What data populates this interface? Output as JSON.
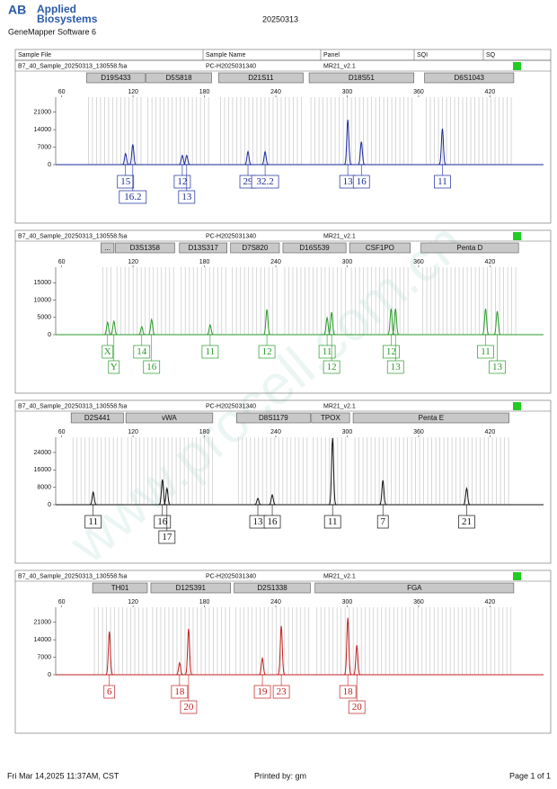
{
  "header": {
    "logo_mark": "AB",
    "brand_line1": "Applied",
    "brand_line2": "Biosystems",
    "software": "GeneMapper Software 6",
    "date": "20250313"
  },
  "columns": [
    "Sample File",
    "Sample Name",
    "Panel",
    "SQI",
    "SQ"
  ],
  "chart_data": [
    {
      "type": "electropherogram",
      "sample_file": "B7_40_Sample_20250313_130558.fsa",
      "sample_name": "PC-H2025031340",
      "panel": "MR21_v2.1",
      "sq_color": "#22cc22",
      "color": "#1a2a9a",
      "xlim": [
        55,
        465
      ],
      "xticks": [
        60,
        120,
        180,
        240,
        300,
        360,
        420
      ],
      "ylim": [
        0,
        27000
      ],
      "yticks": [
        0,
        7000,
        14000,
        21000
      ],
      "markers": [
        {
          "name": "D19S433",
          "start": 81,
          "end": 130
        },
        {
          "name": "D5S818",
          "start": 131,
          "end": 186
        },
        {
          "name": "D21S11",
          "start": 192,
          "end": 263
        },
        {
          "name": "D18S51",
          "start": 268,
          "end": 356
        },
        {
          "name": "D6S1043",
          "start": 365,
          "end": 440
        }
      ],
      "x": [
        113.7,
        119.8,
        161.4,
        165.1,
        216.6,
        231,
        300.5,
        311.9,
        380
      ],
      "values": [
        4400,
        8100,
        3700,
        3700,
        5200,
        5200,
        18000,
        9200,
        14400
      ],
      "labels": [
        "15",
        "16.2",
        "12",
        "13",
        "29",
        "32.2",
        "13",
        "16",
        "11"
      ]
    },
    {
      "type": "electropherogram",
      "sample_file": "B7_40_Sample_20250313_130558.fsa",
      "sample_name": "PC-H2025031340",
      "panel": "MR21_v2.1",
      "sq_color": "#22cc22",
      "color": "#2a9a2a",
      "xlim": [
        55,
        465
      ],
      "xticks": [
        60,
        120,
        180,
        240,
        300,
        360,
        420
      ],
      "ylim": [
        0,
        19500
      ],
      "yticks": [
        0,
        5000,
        10000,
        15000
      ],
      "markers": [
        {
          "name": "...",
          "start": 93,
          "end": 104
        },
        {
          "name": "D3S1358",
          "start": 105,
          "end": 155
        },
        {
          "name": "D13S317",
          "start": 159,
          "end": 199
        },
        {
          "name": "D7S820",
          "start": 202,
          "end": 243
        },
        {
          "name": "D16S539",
          "start": 246,
          "end": 299
        },
        {
          "name": "CSF1PO",
          "start": 302,
          "end": 353
        },
        {
          "name": "Penta D",
          "start": 362,
          "end": 444
        }
      ],
      "x": [
        98.6,
        103.9,
        127.3,
        135.6,
        184.8,
        232.5,
        283.1,
        286.9,
        336.9,
        340.6,
        416.3,
        426.1
      ],
      "values": [
        3600,
        3900,
        2300,
        4400,
        2800,
        7300,
        4900,
        6500,
        7500,
        7500,
        7500,
        6800
      ],
      "labels": [
        "X",
        "Y",
        "14",
        "16",
        "11",
        "12",
        "11",
        "12",
        "12",
        "13",
        "11",
        "13"
      ]
    },
    {
      "type": "electropherogram",
      "sample_file": "B7_40_Sample_20250313_130558.fsa",
      "sample_name": "PC-H2025031340",
      "panel": "MR21_v2.1",
      "sq_color": "#22cc22",
      "color": "#111111",
      "xlim": [
        55,
        465
      ],
      "xticks": [
        60,
        120,
        180,
        240,
        300,
        360,
        420
      ],
      "ylim": [
        0,
        31000
      ],
      "yticks": [
        0,
        8000,
        16000,
        24000
      ],
      "markers": [
        {
          "name": "D2S441",
          "start": 68,
          "end": 112
        },
        {
          "name": "vWA",
          "start": 114,
          "end": 187
        },
        {
          "name": "D8S1179",
          "start": 207,
          "end": 269
        },
        {
          "name": "TPOX",
          "start": 270,
          "end": 302
        },
        {
          "name": "Penta E",
          "start": 305,
          "end": 436
        }
      ],
      "x": [
        86.5,
        144.7,
        148.5,
        224.9,
        237,
        287.7,
        330,
        400.4
      ],
      "values": [
        5800,
        11600,
        7500,
        2900,
        4500,
        30600,
        11200,
        7500
      ],
      "labels": [
        "11",
        "16",
        "17",
        "13",
        "16",
        "11",
        "7",
        "21"
      ]
    },
    {
      "type": "electropherogram",
      "sample_file": "B7_40_Sample_20250313_130558.fsa",
      "sample_name": "PC-H2025031340",
      "panel": "MR21_v2.1",
      "sq_color": "#22cc22",
      "color": "#c02020",
      "xlim": [
        55,
        465
      ],
      "xticks": [
        60,
        120,
        180,
        240,
        300,
        360,
        420
      ],
      "ylim": [
        0,
        27000
      ],
      "yticks": [
        0,
        7000,
        14000,
        21000
      ],
      "markers": [
        {
          "name": "TH01",
          "start": 86,
          "end": 132
        },
        {
          "name": "D12S391",
          "start": 135,
          "end": 202
        },
        {
          "name": "D2S1338",
          "start": 205,
          "end": 269
        },
        {
          "name": "FGA",
          "start": 273,
          "end": 440
        }
      ],
      "x": [
        100.1,
        159.1,
        166.7,
        228.7,
        244.6,
        300.5,
        308.1
      ],
      "values": [
        17300,
        4800,
        18400,
        6600,
        19500,
        22800,
        11800
      ],
      "labels": [
        "6",
        "18",
        "20",
        "19",
        "23",
        "18",
        "20"
      ]
    }
  ],
  "watermark": "www.procell.com.cn",
  "footer": {
    "timestamp": "Fri Mar 14,2025 11:37AM, CST",
    "printed_by": "Printed by: gm",
    "page": "Page 1 of 1"
  }
}
